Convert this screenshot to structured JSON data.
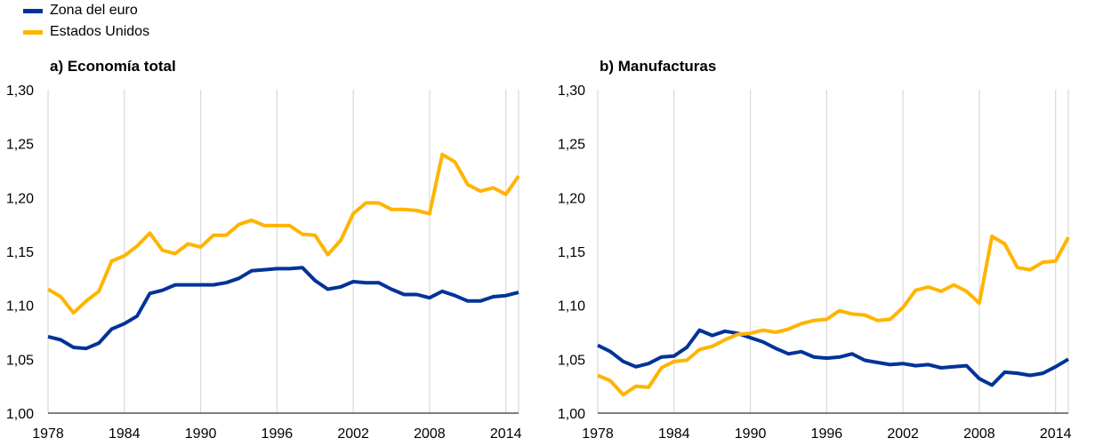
{
  "legend": [
    {
      "label": "Zona del euro",
      "color": "#003399"
    },
    {
      "label": "Estados Unidos",
      "color": "#FFB400"
    }
  ],
  "chart_data": [
    {
      "type": "line",
      "title": "a) Economía total",
      "x": [
        1978,
        1979,
        1980,
        1981,
        1982,
        1983,
        1984,
        1985,
        1986,
        1987,
        1988,
        1989,
        1990,
        1991,
        1992,
        1993,
        1994,
        1995,
        1996,
        1997,
        1998,
        1999,
        2000,
        2001,
        2002,
        2003,
        2004,
        2005,
        2006,
        2007,
        2008,
        2009,
        2010,
        2011,
        2012,
        2013,
        2014,
        2015
      ],
      "series": [
        {
          "name": "Zona del euro",
          "color": "#003399",
          "values": [
            1.071,
            1.068,
            1.061,
            1.06,
            1.065,
            1.078,
            1.083,
            1.09,
            1.111,
            1.114,
            1.119,
            1.119,
            1.119,
            1.119,
            1.121,
            1.125,
            1.132,
            1.133,
            1.134,
            1.134,
            1.135,
            1.123,
            1.115,
            1.117,
            1.122,
            1.121,
            1.121,
            1.115,
            1.11,
            1.11,
            1.107,
            1.113,
            1.109,
            1.104,
            1.104,
            1.108,
            1.109,
            1.112
          ]
        },
        {
          "name": "Estados Unidos",
          "color": "#FFB400",
          "values": [
            1.115,
            1.108,
            1.093,
            1.104,
            1.113,
            1.141,
            1.146,
            1.155,
            1.167,
            1.151,
            1.148,
            1.157,
            1.154,
            1.165,
            1.165,
            1.175,
            1.179,
            1.174,
            1.174,
            1.174,
            1.166,
            1.165,
            1.147,
            1.16,
            1.185,
            1.195,
            1.195,
            1.189,
            1.189,
            1.188,
            1.185,
            1.24,
            1.233,
            1.212,
            1.206,
            1.209,
            1.203,
            1.22
          ]
        }
      ],
      "xticks": [
        1978,
        1984,
        1990,
        1996,
        2002,
        2008,
        2014
      ],
      "yticks": [
        "1,00",
        "1,05",
        "1,10",
        "1,15",
        "1,20",
        "1,25",
        "1,30"
      ],
      "xlim": [
        1978,
        2015
      ],
      "ylim": [
        1.0,
        1.3
      ],
      "grid": "vertical"
    },
    {
      "type": "line",
      "title": "b) Manufacturas",
      "x": [
        1978,
        1979,
        1980,
        1981,
        1982,
        1983,
        1984,
        1985,
        1986,
        1987,
        1988,
        1989,
        1990,
        1991,
        1992,
        1993,
        1994,
        1995,
        1996,
        1997,
        1998,
        1999,
        2000,
        2001,
        2002,
        2003,
        2004,
        2005,
        2006,
        2007,
        2008,
        2009,
        2010,
        2011,
        2012,
        2013,
        2014,
        2015
      ],
      "series": [
        {
          "name": "Zona del euro",
          "color": "#003399",
          "values": [
            1.063,
            1.057,
            1.048,
            1.043,
            1.046,
            1.052,
            1.053,
            1.061,
            1.077,
            1.072,
            1.076,
            1.074,
            1.07,
            1.066,
            1.06,
            1.055,
            1.057,
            1.052,
            1.051,
            1.052,
            1.055,
            1.049,
            1.047,
            1.045,
            1.046,
            1.044,
            1.045,
            1.042,
            1.043,
            1.044,
            1.032,
            1.026,
            1.038,
            1.037,
            1.035,
            1.037,
            1.043,
            1.05
          ]
        },
        {
          "name": "Estados Unidos",
          "color": "#FFB400",
          "values": [
            1.035,
            1.03,
            1.017,
            1.025,
            1.024,
            1.042,
            1.048,
            1.049,
            1.059,
            1.062,
            1.068,
            1.073,
            1.074,
            1.077,
            1.075,
            1.078,
            1.083,
            1.086,
            1.087,
            1.095,
            1.092,
            1.091,
            1.086,
            1.087,
            1.098,
            1.114,
            1.117,
            1.113,
            1.119,
            1.113,
            1.102,
            1.164,
            1.157,
            1.135,
            1.133,
            1.14,
            1.141,
            1.163
          ]
        }
      ],
      "xticks": [
        1978,
        1984,
        1990,
        1996,
        2002,
        2008,
        2014
      ],
      "yticks": [
        "1,00",
        "1,05",
        "1,10",
        "1,15",
        "1,20",
        "1,25",
        "1,30"
      ],
      "xlim": [
        1978,
        2015
      ],
      "ylim": [
        1.0,
        1.3
      ],
      "grid": "vertical"
    }
  ]
}
